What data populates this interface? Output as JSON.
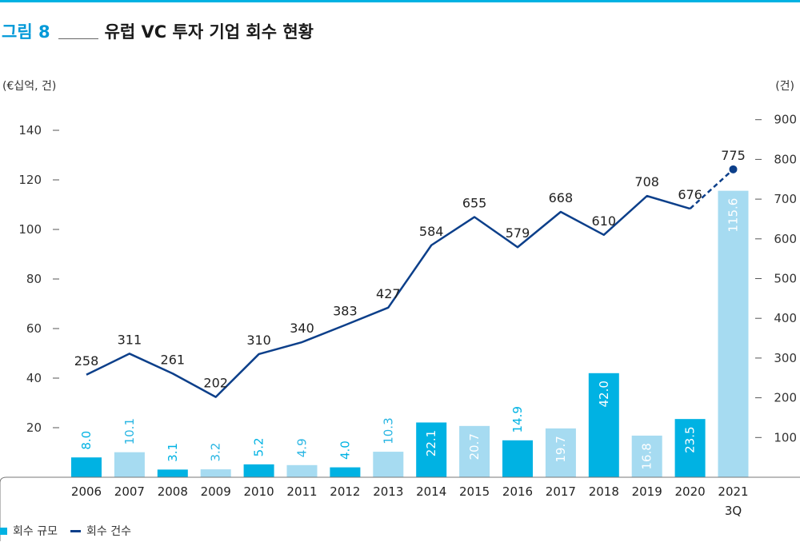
{
  "figure": {
    "number": "그림 8",
    "title": "유럽 VC 투자 기업 회수 현황"
  },
  "legend": {
    "bars": "회수 규모",
    "line": "회수 건수"
  },
  "colors": {
    "bar_dark": "#00b2e3",
    "bar_light": "#a6dbf1",
    "line": "#0c3f8a",
    "label_light_on_white": "#29b6e3",
    "label_white": "#ffffff"
  },
  "chart_data": {
    "type": "bar",
    "y_left_label": "(€십억, 건)",
    "y_right_label": "(건)",
    "y_left_ticks": [
      "20",
      "40",
      "60",
      "80",
      "100",
      "120",
      "140"
    ],
    "y_right_ticks": [
      "100",
      "200",
      "300",
      "400",
      "500",
      "600",
      "700",
      "800",
      "900"
    ],
    "ylim_left": [
      0,
      140
    ],
    "ylim_right": [
      0,
      900
    ],
    "categories": [
      "2006",
      "2007",
      "2008",
      "2009",
      "2010",
      "2011",
      "2012",
      "2013",
      "2014",
      "2015",
      "2016",
      "2017",
      "2018",
      "2019",
      "2020",
      "2021"
    ],
    "category_sublabels": [
      "",
      "",
      "",
      "",
      "",
      "",
      "",
      "",
      "",
      "",
      "",
      "",
      "",
      "",
      "",
      "3Q"
    ],
    "series": [
      {
        "name": "회수 규모",
        "type": "bar",
        "axis": "left",
        "values": [
          8.0,
          10.1,
          3.1,
          3.2,
          5.2,
          4.9,
          4.0,
          10.3,
          22.1,
          20.7,
          14.9,
          19.7,
          42.0,
          16.8,
          23.5,
          115.6
        ],
        "labels": [
          "8.0",
          "10.1",
          "3.1",
          "3.2",
          "5.2",
          "4.9",
          "4.0",
          "10.3",
          "22.1",
          "20.7",
          "14.9",
          "19.7",
          "42.0",
          "16.8",
          "23.5",
          "115.6"
        ]
      },
      {
        "name": "회수 건수",
        "type": "line",
        "axis": "right",
        "values": [
          258,
          311,
          261,
          202,
          310,
          340,
          383,
          427,
          584,
          655,
          579,
          668,
          610,
          708,
          676,
          775
        ],
        "labels": [
          "258",
          "311",
          "261",
          "202",
          "310",
          "340",
          "383",
          "427",
          "584",
          "655",
          "579",
          "668",
          "610",
          "708",
          "676",
          "775"
        ],
        "dashed_last_segment": true
      }
    ],
    "grid": false,
    "legend_position": "bottom-left"
  }
}
